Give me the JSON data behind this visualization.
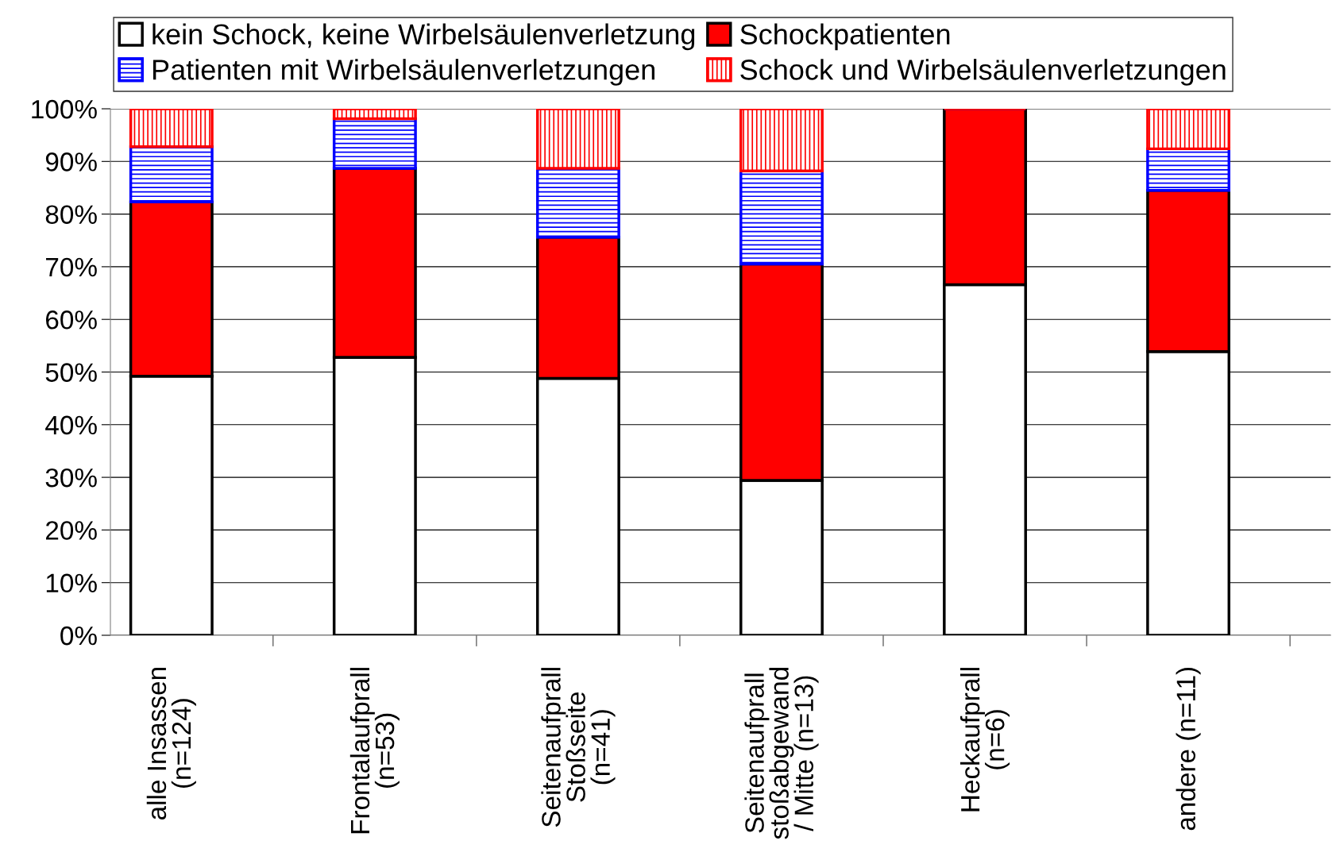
{
  "chart_data": {
    "type": "bar",
    "stacked": true,
    "categories": [
      "alle Insassen\n(n=124)",
      "Frontalaufprall\n(n=53)",
      "Seitenaufprall\nStoßseite\n(n=41)",
      "Seitenaufprall\nstoßabgewand\n/ Mitte (n=13)",
      "Heckaufprall\n(n=6)",
      "andere (n=11)"
    ],
    "series": [
      {
        "name": "kein Schock, keine Wirbelsäulenverletzung",
        "color": "#ffffff",
        "values": [
          49.2,
          52.8,
          48.8,
          29.4,
          66.6,
          53.9
        ]
      },
      {
        "name": "Schockpatienten",
        "color": "#ff0000",
        "values": [
          33.1,
          35.9,
          26.8,
          41.1,
          33.4,
          30.6
        ]
      },
      {
        "name": "Patienten mit Wirbelsäulenverletzungen",
        "color": "#0000ff",
        "values": [
          10.5,
          9.4,
          13.1,
          17.7,
          0,
          7.9
        ]
      },
      {
        "name": "Schock und Wirbelsäulenverletzungen",
        "color": "#ff0000",
        "values": [
          7.2,
          1.9,
          11.3,
          11.8,
          0,
          7.6
        ]
      }
    ],
    "ylim": [
      0,
      100
    ],
    "yticks": [
      {
        "value": 0,
        "label": "0%"
      },
      {
        "value": 10,
        "label": "10%"
      },
      {
        "value": 20,
        "label": "20%"
      },
      {
        "value": 30,
        "label": "30%"
      },
      {
        "value": 40,
        "label": "40%"
      },
      {
        "value": 50,
        "label": "50%"
      },
      {
        "value": 60,
        "label": "60%"
      },
      {
        "value": 70,
        "label": "70%"
      },
      {
        "value": 80,
        "label": "80%"
      },
      {
        "value": 90,
        "label": "90%"
      },
      {
        "value": 100,
        "label": "100%"
      }
    ],
    "grid": "y",
    "legend": "top"
  }
}
